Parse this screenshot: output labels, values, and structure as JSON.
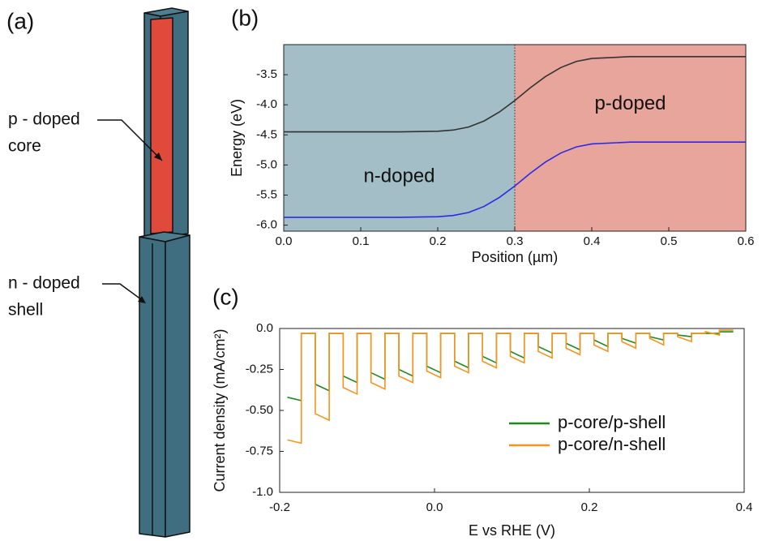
{
  "diagram": {
    "panel_label": "(a)",
    "labels": [
      "p - doped",
      "core",
      "n - doped",
      "shell"
    ]
  },
  "chart_data": [
    {
      "type": "line",
      "panel_label": "(b)",
      "xlabel": "Position (µm)",
      "ylabel": "Energy (eV)",
      "xlim": [
        0,
        0.6
      ],
      "ylim": [
        -6.1,
        -3.0
      ],
      "xticks": [
        {
          "value": 0,
          "label": "0.0"
        },
        0.1,
        0.2,
        0.3,
        0.4,
        0.5,
        0.6
      ],
      "yticks": [
        -3.5,
        {
          "value": -4,
          "label": "-4.0"
        },
        -4.5,
        {
          "value": -5,
          "label": "-5.0"
        },
        -5.5,
        {
          "value": -6,
          "label": "-6.0"
        }
      ],
      "regions": [
        {
          "xlim": [
            0,
            0.3
          ],
          "color": "#a3bec6",
          "label": "n-doped"
        },
        {
          "xlim": [
            0.3,
            0.6
          ],
          "color": "#e8a59c",
          "label": "p-doped"
        }
      ],
      "x": [
        0,
        0.05,
        0.1,
        0.15,
        0.2,
        0.22,
        0.24,
        0.26,
        0.28,
        0.3,
        0.32,
        0.34,
        0.36,
        0.38,
        0.4,
        0.45,
        0.5,
        0.55,
        0.6
      ],
      "series": [
        {
          "color": "#333333",
          "values": [
            -4.45,
            -4.45,
            -4.45,
            -4.45,
            -4.44,
            -4.42,
            -4.37,
            -4.27,
            -4.12,
            -3.93,
            -3.72,
            -3.53,
            -3.38,
            -3.28,
            -3.23,
            -3.2,
            -3.2,
            -3.2,
            -3.2
          ]
        },
        {
          "color": "#2b2be6",
          "values": [
            -5.87,
            -5.87,
            -5.87,
            -5.87,
            -5.86,
            -5.84,
            -5.79,
            -5.69,
            -5.54,
            -5.35,
            -5.14,
            -4.95,
            -4.8,
            -4.7,
            -4.65,
            -4.62,
            -4.62,
            -4.62,
            -4.62
          ]
        }
      ]
    },
    {
      "type": "line",
      "panel_label": "(c)",
      "xlabel": "E vs RHE (V)",
      "ylabel": "Current density (mA/cm²)",
      "xlim": [
        -0.2,
        0.4
      ],
      "ylim": [
        -1.0,
        0.0
      ],
      "xticks": [
        -0.2,
        {
          "value": 0,
          "label": "0.0"
        },
        0.2,
        0.4
      ],
      "yticks": [
        {
          "value": 0,
          "label": "0.0"
        },
        -0.25,
        {
          "value": -0.5,
          "label": "-0.50"
        },
        -0.75,
        {
          "value": -1,
          "label": "-1.0"
        }
      ],
      "legend": "lower right",
      "x": [
        -0.19,
        -0.172,
        -0.172,
        -0.154,
        -0.154,
        -0.136,
        -0.136,
        -0.118,
        -0.118,
        -0.1,
        -0.1,
        -0.082,
        -0.082,
        -0.064,
        -0.064,
        -0.046,
        -0.046,
        -0.028,
        -0.028,
        -0.01,
        -0.01,
        0.008,
        0.008,
        0.026,
        0.026,
        0.044,
        0.044,
        0.062,
        0.062,
        0.08,
        0.08,
        0.098,
        0.098,
        0.116,
        0.116,
        0.134,
        0.134,
        0.152,
        0.152,
        0.17,
        0.17,
        0.188,
        0.188,
        0.206,
        0.206,
        0.224,
        0.224,
        0.242,
        0.242,
        0.26,
        0.26,
        0.278,
        0.278,
        0.296,
        0.296,
        0.314,
        0.314,
        0.332,
        0.332,
        0.35,
        0.35,
        0.368,
        0.368,
        0.386
      ],
      "series": [
        {
          "name": "p-core/p-shell",
          "color": "#1e8a1e",
          "values": [
            -0.42,
            -0.44,
            -0.03,
            -0.03,
            -0.34,
            -0.38,
            -0.03,
            -0.03,
            -0.29,
            -0.33,
            -0.03,
            -0.03,
            -0.27,
            -0.31,
            -0.03,
            -0.03,
            -0.25,
            -0.29,
            -0.03,
            -0.03,
            -0.23,
            -0.27,
            -0.03,
            -0.03,
            -0.2,
            -0.24,
            -0.03,
            -0.03,
            -0.17,
            -0.21,
            -0.03,
            -0.03,
            -0.14,
            -0.18,
            -0.03,
            -0.03,
            -0.11,
            -0.15,
            -0.03,
            -0.03,
            -0.09,
            -0.13,
            -0.03,
            -0.03,
            -0.07,
            -0.11,
            -0.03,
            -0.03,
            -0.06,
            -0.09,
            -0.03,
            -0.03,
            -0.05,
            -0.07,
            -0.03,
            -0.03,
            -0.04,
            -0.05,
            -0.03,
            -0.03,
            -0.03,
            -0.03,
            -0.02,
            -0.02
          ]
        },
        {
          "name": "p-core/n-shell",
          "color": "#f7941d",
          "values": [
            -0.68,
            -0.7,
            -0.03,
            -0.03,
            -0.52,
            -0.56,
            -0.03,
            -0.03,
            -0.36,
            -0.4,
            -0.03,
            -0.03,
            -0.33,
            -0.37,
            -0.03,
            -0.03,
            -0.29,
            -0.33,
            -0.03,
            -0.03,
            -0.26,
            -0.3,
            -0.03,
            -0.03,
            -0.23,
            -0.27,
            -0.03,
            -0.03,
            -0.2,
            -0.24,
            -0.03,
            -0.03,
            -0.17,
            -0.21,
            -0.03,
            -0.03,
            -0.14,
            -0.18,
            -0.03,
            -0.03,
            -0.12,
            -0.16,
            -0.03,
            -0.03,
            -0.1,
            -0.14,
            -0.03,
            -0.03,
            -0.08,
            -0.12,
            -0.03,
            -0.03,
            -0.06,
            -0.1,
            -0.03,
            -0.03,
            -0.05,
            -0.08,
            -0.03,
            -0.03,
            -0.02,
            -0.04,
            -0.01,
            -0.01
          ]
        }
      ]
    }
  ]
}
